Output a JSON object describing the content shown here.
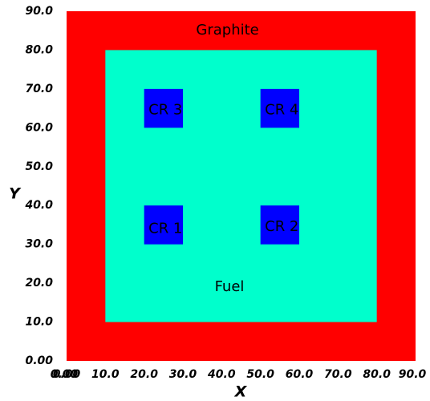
{
  "axes": {
    "x_title": "X",
    "y_title": "Y",
    "x_range": [
      0,
      90
    ],
    "y_range": [
      0,
      90
    ],
    "x_ticks": [
      "0.00",
      "10.0",
      "20.0",
      "30.0",
      "40.0",
      "50.0",
      "60.0",
      "70.0",
      "80.0",
      "90.0"
    ],
    "y_ticks": [
      "0.00",
      "10.0",
      "20.0",
      "30.0",
      "40.0",
      "50.0",
      "60.0",
      "70.0",
      "80.0",
      "90.0"
    ],
    "extra_x_tick": "0.00"
  },
  "regions": [
    {
      "key": "graphite",
      "label": "Graphite",
      "x": [
        0,
        90
      ],
      "y": [
        0,
        90
      ],
      "label_at": [
        41.5,
        85
      ],
      "color": "#ff0000"
    },
    {
      "key": "fuel",
      "label": "Fuel",
      "x": [
        10,
        80
      ],
      "y": [
        10,
        80
      ],
      "label_at": [
        42,
        19
      ],
      "color": "#00ffcc"
    },
    {
      "key": "cr-1",
      "label": "CR 1",
      "x": [
        20,
        30
      ],
      "y": [
        30,
        40
      ],
      "label_at": [
        25.5,
        34
      ],
      "color": "#0000ff"
    },
    {
      "key": "cr-2",
      "label": "CR 2",
      "x": [
        50,
        60
      ],
      "y": [
        30,
        40
      ],
      "label_at": [
        55.5,
        34.5
      ],
      "color": "#0000ff"
    },
    {
      "key": "cr-3",
      "label": "CR 3",
      "x": [
        20,
        30
      ],
      "y": [
        60,
        70
      ],
      "label_at": [
        25.5,
        64.5
      ],
      "color": "#0000ff"
    },
    {
      "key": "cr-4",
      "label": "CR 4",
      "x": [
        50,
        60
      ],
      "y": [
        60,
        70
      ],
      "label_at": [
        55.5,
        64.5
      ],
      "color": "#0000ff"
    }
  ]
}
